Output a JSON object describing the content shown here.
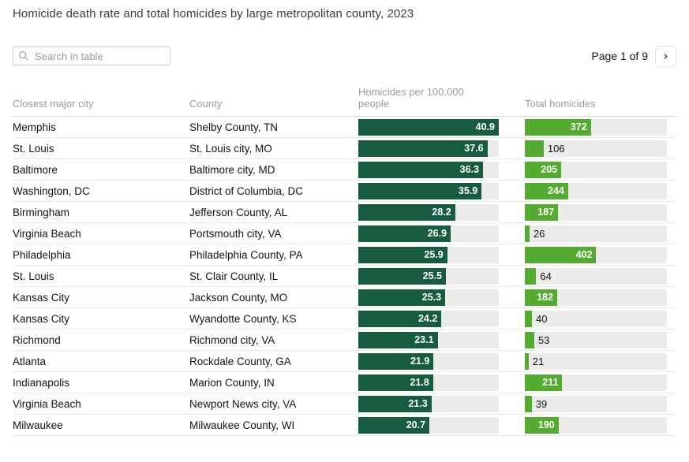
{
  "title": "Homicide death rate and total homicides by large metropolitan county, 2023",
  "search": {
    "placeholder": "Search in table"
  },
  "pagination": {
    "label": "Page 1 of 9",
    "next_icon": "›"
  },
  "colors": {
    "rate_bar": "#175b40",
    "total_bar": "#53ac30",
    "track": "#ebebe9"
  },
  "chart_data": {
    "type": "table",
    "title": "Homicide death rate and total homicides by large metropolitan county, 2023",
    "columns": [
      "Closest major city",
      "County",
      "Homicides per 100,000 people",
      "Total homicides"
    ],
    "rate_axis_max": 40.9,
    "total_axis_max": 800,
    "label_inside_threshold_total": 150,
    "rows": [
      {
        "city": "Memphis",
        "county": "Shelby County, TN",
        "rate": 40.9,
        "total": 372
      },
      {
        "city": "St. Louis",
        "county": "St. Louis city, MO",
        "rate": 37.6,
        "total": 106
      },
      {
        "city": "Baltimore",
        "county": "Baltimore city, MD",
        "rate": 36.3,
        "total": 205
      },
      {
        "city": "Washington, DC",
        "county": "District of Columbia, DC",
        "rate": 35.9,
        "total": 244
      },
      {
        "city": "Birmingham",
        "county": "Jefferson County, AL",
        "rate": 28.2,
        "total": 187
      },
      {
        "city": "Virginia Beach",
        "county": "Portsmouth city, VA",
        "rate": 26.9,
        "total": 26
      },
      {
        "city": "Philadelphia",
        "county": "Philadelphia County, PA",
        "rate": 25.9,
        "total": 402
      },
      {
        "city": "St. Louis",
        "county": "St. Clair County, IL",
        "rate": 25.5,
        "total": 64
      },
      {
        "city": "Kansas City",
        "county": "Jackson County, MO",
        "rate": 25.3,
        "total": 182
      },
      {
        "city": "Kansas City",
        "county": "Wyandotte County, KS",
        "rate": 24.2,
        "total": 40
      },
      {
        "city": "Richmond",
        "county": "Richmond city, VA",
        "rate": 23.1,
        "total": 53
      },
      {
        "city": "Atlanta",
        "county": "Rockdale County, GA",
        "rate": 21.9,
        "total": 21
      },
      {
        "city": "Indianapolis",
        "county": "Marion County, IN",
        "rate": 21.8,
        "total": 211
      },
      {
        "city": "Virginia Beach",
        "county": "Newport News city, VA",
        "rate": 21.3,
        "total": 39
      },
      {
        "city": "Milwaukee",
        "county": "Milwaukee County, WI",
        "rate": 20.7,
        "total": 190
      }
    ]
  }
}
